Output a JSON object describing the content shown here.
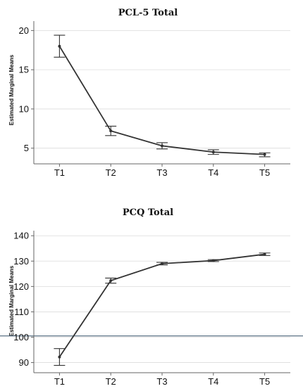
{
  "chart_data": [
    {
      "type": "line",
      "title": "PCL-5 Total",
      "ylabel": "Estimated Marginal Means",
      "xlabel": "",
      "categories": [
        "T1",
        "T2",
        "T3",
        "T4",
        "T5"
      ],
      "values": [
        18.0,
        7.2,
        5.3,
        4.5,
        4.2
      ],
      "error_low": [
        16.6,
        6.6,
        4.9,
        4.2,
        3.9
      ],
      "error_high": [
        19.4,
        7.8,
        5.7,
        4.8,
        4.4
      ],
      "yticks": [
        5,
        10,
        15,
        20
      ],
      "ylim": [
        3.0,
        21.2
      ],
      "grid": true,
      "color": "#333333"
    },
    {
      "type": "line",
      "title": "PCQ Total",
      "ylabel": "Estimated Marginal Means",
      "xlabel": "",
      "categories": [
        "T1",
        "T2",
        "T3",
        "T4",
        "T5"
      ],
      "values": [
        92.2,
        122.3,
        129.0,
        130.2,
        132.7
      ],
      "error_low": [
        88.9,
        121.3,
        128.5,
        129.8,
        132.2
      ],
      "error_high": [
        95.5,
        123.3,
        129.5,
        130.6,
        133.2
      ],
      "yticks": [
        90,
        100,
        110,
        120,
        130,
        140
      ],
      "ylim": [
        86.0,
        142.0
      ],
      "reference_line": 100.5,
      "grid": true,
      "color": "#333333",
      "reference_color": "#4a6378"
    }
  ]
}
